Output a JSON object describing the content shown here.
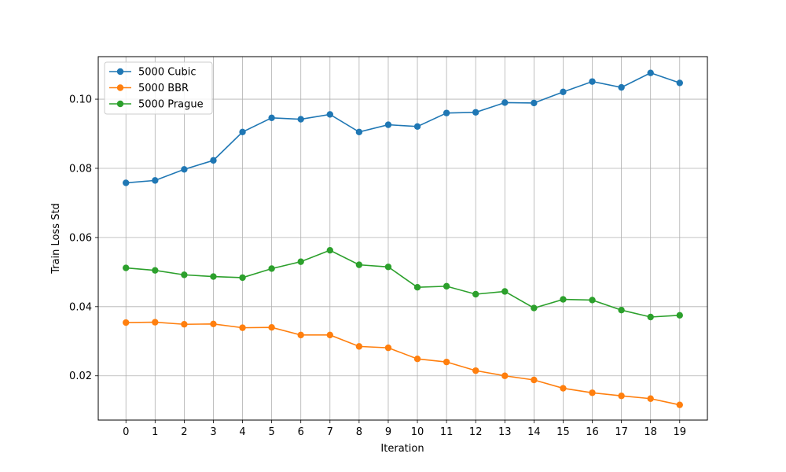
{
  "chart_data": {
    "type": "line",
    "title": "",
    "xlabel": "Iteration",
    "ylabel": "Train Loss Std",
    "x": [
      0,
      1,
      2,
      3,
      4,
      5,
      6,
      7,
      8,
      9,
      10,
      11,
      12,
      13,
      14,
      15,
      16,
      17,
      18,
      19
    ],
    "xticks": [
      "0",
      "1",
      "2",
      "3",
      "4",
      "5",
      "6",
      "7",
      "8",
      "9",
      "10",
      "11",
      "12",
      "13",
      "14",
      "15",
      "16",
      "17",
      "18",
      "19"
    ],
    "yticks": [
      0.02,
      0.04,
      0.06,
      0.08,
      0.1
    ],
    "ytick_labels": [
      "0.02",
      "0.04",
      "0.06",
      "0.08",
      "0.10"
    ],
    "xlim": [
      -0.95,
      19.95
    ],
    "ylim": [
      0.0072,
      0.1123
    ],
    "grid": true,
    "legend_position": "top-left",
    "series": [
      {
        "name": "5000 Cubic",
        "color": "#1f77b4",
        "values": [
          0.0758,
          0.0765,
          0.0797,
          0.0823,
          0.0905,
          0.0946,
          0.0942,
          0.0956,
          0.0905,
          0.0926,
          0.0921,
          0.096,
          0.0962,
          0.099,
          0.0989,
          0.1021,
          0.1051,
          0.1034,
          0.1076,
          0.1047
        ]
      },
      {
        "name": "5000 BBR",
        "color": "#ff7f0e",
        "values": [
          0.0354,
          0.0355,
          0.0349,
          0.035,
          0.0339,
          0.034,
          0.0318,
          0.0318,
          0.0285,
          0.0281,
          0.0249,
          0.024,
          0.0215,
          0.02,
          0.0188,
          0.0164,
          0.0151,
          0.0142,
          0.0134,
          0.0116
        ]
      },
      {
        "name": "5000 Prague",
        "color": "#2ca02c",
        "values": [
          0.0512,
          0.0505,
          0.0492,
          0.0487,
          0.0484,
          0.051,
          0.053,
          0.0563,
          0.0521,
          0.0515,
          0.0456,
          0.0459,
          0.0436,
          0.0444,
          0.0396,
          0.0421,
          0.0419,
          0.039,
          0.037,
          0.0375
        ]
      }
    ]
  }
}
